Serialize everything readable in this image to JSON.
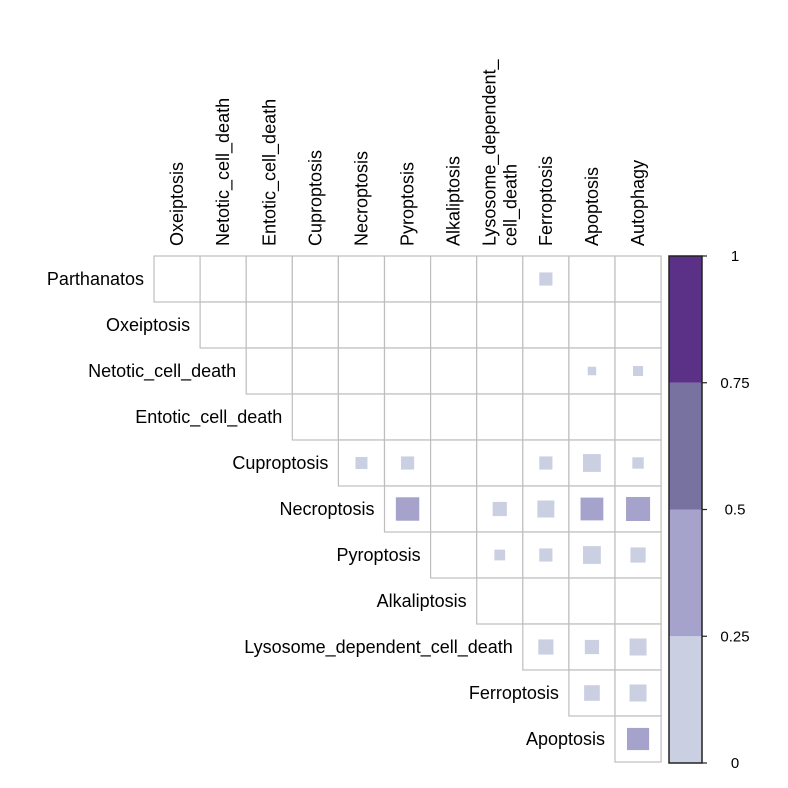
{
  "chart_data": {
    "type": "heatmap",
    "title": "",
    "columns": [
      "Oxeiptosis",
      "Netotic_cell_death",
      "Entotic_cell_death",
      "Cuproptosis",
      "Necroptosis",
      "Pyroptosis",
      "Alkaliptosis",
      "Lysosome_dependent_cell_death",
      "Ferroptosis",
      "Apoptosis",
      "Autophagy"
    ],
    "column_label_lines": [
      [
        "Oxeiptosis"
      ],
      [
        "Netotic_cell_death"
      ],
      [
        "Entotic_cell_death"
      ],
      [
        "Cuproptosis"
      ],
      [
        "Necroptosis"
      ],
      [
        "Pyroptosis"
      ],
      [
        "Alkaliptosis"
      ],
      [
        "Lysosome_dependent_",
        "cell_death"
      ],
      [
        "Ferroptosis"
      ],
      [
        "Apoptosis"
      ],
      [
        "Autophagy"
      ]
    ],
    "rows": [
      "Parthanatos",
      "Oxeiptosis",
      "Netotic_cell_death",
      "Entotic_cell_death",
      "Cuproptosis",
      "Necroptosis",
      "Pyroptosis",
      "Alkaliptosis",
      "Lysosome_dependent_cell_death",
      "Ferroptosis",
      "Apoptosis"
    ],
    "values": [
      [
        0,
        0,
        0,
        0,
        0,
        0,
        0,
        0,
        0.12,
        0,
        0
      ],
      [
        null,
        0,
        0,
        0,
        0,
        0,
        0,
        0,
        0,
        0,
        0
      ],
      [
        null,
        null,
        0,
        0,
        0,
        0,
        0,
        0,
        0,
        0.05,
        0.07
      ],
      [
        null,
        null,
        null,
        0,
        0,
        0,
        0,
        0,
        0,
        0,
        0
      ],
      [
        null,
        null,
        null,
        null,
        0.1,
        0.12,
        0,
        0,
        0.12,
        0.22,
        0.09
      ],
      [
        null,
        null,
        null,
        null,
        null,
        0.38,
        0,
        0.14,
        0.2,
        0.36,
        0.4
      ],
      [
        null,
        null,
        null,
        null,
        null,
        null,
        0,
        0.08,
        0.12,
        0.22,
        0.16
      ],
      [
        null,
        null,
        null,
        null,
        null,
        null,
        null,
        0,
        0,
        0,
        0
      ],
      [
        null,
        null,
        null,
        null,
        null,
        null,
        null,
        null,
        0.16,
        0.14,
        0.2
      ],
      [
        null,
        null,
        null,
        null,
        null,
        null,
        null,
        null,
        null,
        0.17,
        0.2
      ],
      [
        null,
        null,
        null,
        null,
        null,
        null,
        null,
        null,
        null,
        null,
        0.34
      ]
    ],
    "color_scale": {
      "bins": [
        {
          "from": 0,
          "to": 0.25,
          "color": "#cbcfe2"
        },
        {
          "from": 0.25,
          "to": 0.5,
          "color": "#a5a2cb"
        },
        {
          "from": 0.5,
          "to": 0.75,
          "color": "#77729f"
        },
        {
          "from": 0.75,
          "to": 1,
          "color": "#5a3186"
        }
      ],
      "ticks": [
        {
          "value": 1,
          "label": "1"
        },
        {
          "value": 0.75,
          "label": "0.75"
        },
        {
          "value": 0.5,
          "label": "0.5"
        },
        {
          "value": 0.25,
          "label": "0.25"
        },
        {
          "value": 0,
          "label": "0"
        }
      ]
    },
    "grid": true,
    "legend_placement": "right",
    "colors": {
      "grid": "#bebebe",
      "legend_border": "#222222"
    }
  }
}
